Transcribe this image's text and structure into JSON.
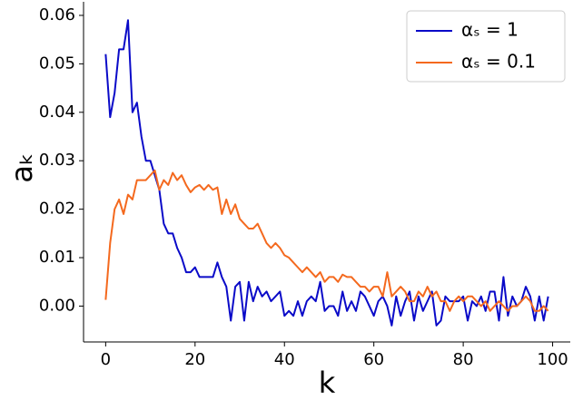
{
  "chart_data": {
    "type": "line",
    "x_label": "k",
    "y_label": "aₖ",
    "x": [
      0,
      1,
      2,
      3,
      4,
      5,
      6,
      7,
      8,
      9,
      10,
      11,
      12,
      13,
      14,
      15,
      16,
      17,
      18,
      19,
      20,
      21,
      22,
      23,
      24,
      25,
      26,
      27,
      28,
      29,
      30,
      31,
      32,
      33,
      34,
      35,
      36,
      37,
      38,
      39,
      40,
      41,
      42,
      43,
      44,
      45,
      46,
      47,
      48,
      49,
      50,
      51,
      52,
      53,
      54,
      55,
      56,
      57,
      58,
      59,
      60,
      61,
      62,
      63,
      64,
      65,
      66,
      67,
      68,
      69,
      70,
      71,
      72,
      73,
      74,
      75,
      76,
      77,
      78,
      79,
      80,
      81,
      82,
      83,
      84,
      85,
      86,
      87,
      88,
      89,
      90,
      91,
      92,
      93,
      94,
      95,
      96,
      97,
      98,
      99
    ],
    "series": [
      {
        "name": "αₛ = 1",
        "color": "#0a0ac8",
        "values": [
          0.052,
          0.039,
          0.044,
          0.053,
          0.053,
          0.059,
          0.04,
          0.042,
          0.035,
          0.03,
          0.03,
          0.027,
          0.024,
          0.017,
          0.015,
          0.015,
          0.012,
          0.01,
          0.007,
          0.007,
          0.008,
          0.006,
          0.006,
          0.006,
          0.006,
          0.009,
          0.006,
          0.004,
          -0.003,
          0.004,
          0.005,
          -0.003,
          0.005,
          0.001,
          0.004,
          0.002,
          0.003,
          0.001,
          0.002,
          0.003,
          -0.002,
          -0.001,
          -0.002,
          0.001,
          -0.002,
          0.001,
          0.002,
          0.001,
          0.005,
          -0.001,
          0.0,
          0.0,
          -0.002,
          0.003,
          -0.001,
          0.001,
          -0.001,
          0.003,
          0.002,
          0.0,
          -0.002,
          0.001,
          0.002,
          0.0,
          -0.004,
          0.002,
          -0.002,
          0.001,
          0.003,
          -0.003,
          0.002,
          -0.001,
          0.001,
          0.003,
          -0.004,
          -0.003,
          0.002,
          0.001,
          0.001,
          0.001,
          0.002,
          -0.003,
          0.001,
          0.0,
          0.002,
          -0.001,
          0.003,
          0.003,
          -0.003,
          0.006,
          -0.002,
          0.002,
          0.0,
          0.001,
          0.004,
          0.002,
          -0.003,
          0.002,
          -0.003,
          0.002
        ]
      },
      {
        "name": "αₛ = 0.1",
        "color": "#f4691e",
        "values": [
          0.0013,
          0.013,
          0.02,
          0.022,
          0.019,
          0.023,
          0.022,
          0.026,
          0.026,
          0.026,
          0.027,
          0.028,
          0.024,
          0.026,
          0.025,
          0.0275,
          0.026,
          0.027,
          0.025,
          0.0235,
          0.0245,
          0.025,
          0.024,
          0.025,
          0.024,
          0.0245,
          0.019,
          0.022,
          0.019,
          0.021,
          0.018,
          0.017,
          0.016,
          0.016,
          0.017,
          0.015,
          0.013,
          0.012,
          0.013,
          0.012,
          0.0105,
          0.01,
          0.009,
          0.008,
          0.007,
          0.008,
          0.007,
          0.006,
          0.007,
          0.005,
          0.006,
          0.006,
          0.005,
          0.0065,
          0.006,
          0.006,
          0.005,
          0.004,
          0.004,
          0.003,
          0.004,
          0.004,
          0.002,
          0.007,
          0.002,
          0.003,
          0.004,
          0.003,
          0.001,
          0.001,
          0.003,
          0.002,
          0.004,
          0.002,
          0.003,
          0.001,
          0.001,
          -0.001,
          0.001,
          0.002,
          0.001,
          0.002,
          0.002,
          0.001,
          0.0,
          0.001,
          -0.001,
          0.0,
          0.001,
          0.0,
          -0.001,
          0.0,
          0.0,
          0.001,
          0.002,
          0.001,
          -0.001,
          -0.001,
          0.0,
          -0.001
        ]
      }
    ],
    "xlim": [
      -4.95,
      103.95
    ],
    "ylim": [
      -0.0074,
      0.0628
    ],
    "xticks": [
      0,
      20,
      40,
      60,
      80,
      100
    ],
    "yticks": [
      {
        "value": 0,
        "label": "0.00"
      },
      {
        "value": 0.01,
        "label": "0.01"
      },
      {
        "value": 0.02,
        "label": "0.02"
      },
      {
        "value": 0.03,
        "label": "0.03"
      },
      {
        "value": 0.04,
        "label": "0.04"
      },
      {
        "value": 0.05,
        "label": "0.05"
      },
      {
        "value": 0.06,
        "label": "0.06"
      }
    ],
    "legend_position": "upper right",
    "grid": false
  }
}
